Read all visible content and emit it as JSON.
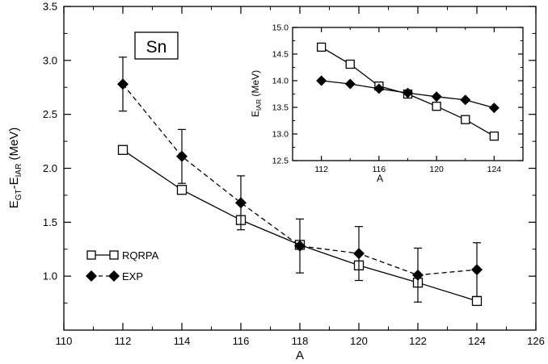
{
  "chart_data": [
    {
      "type": "line",
      "panel": "main",
      "title": "Sn",
      "xlabel": "A",
      "ylabel": {
        "main": "E",
        "sub1": "GT",
        "sep": "-E",
        "sub2": "IAR",
        "unit": " (MeV)"
      },
      "xlim": [
        110,
        126
      ],
      "ylim": [
        0.5,
        3.5
      ],
      "xticks": [
        "110",
        "112",
        "114",
        "116",
        "118",
        "120",
        "122",
        "124",
        "126"
      ],
      "yticks": [
        "1.0",
        "1.5",
        "2.0",
        "2.5",
        "3.0",
        "3.5"
      ],
      "legend_position": "bottom-left",
      "series": [
        {
          "name": "RQRPA",
          "marker": "open-square",
          "line": "solid",
          "x": [
            112,
            114,
            116,
            118,
            120,
            122,
            124
          ],
          "y": [
            2.17,
            1.8,
            1.52,
            1.29,
            1.1,
            0.94,
            0.77
          ]
        },
        {
          "name": "EXP",
          "marker": "filled-diamond",
          "line": "dashed",
          "x": [
            112,
            114,
            116,
            118,
            120,
            122,
            124
          ],
          "y": [
            2.78,
            2.11,
            1.68,
            1.28,
            1.21,
            1.01,
            1.06
          ],
          "err_low": [
            2.53,
            1.86,
            1.43,
            1.03,
            0.96,
            0.76,
            0.81
          ],
          "err_high": [
            3.03,
            2.36,
            1.93,
            1.53,
            1.46,
            1.26,
            1.31
          ]
        }
      ]
    },
    {
      "type": "line",
      "panel": "inset",
      "xlabel": "A",
      "ylabel": {
        "main": "E",
        "sub": "IAR",
        "unit": " (MeV)"
      },
      "xlim": [
        110,
        126
      ],
      "ylim": [
        12.5,
        15.0
      ],
      "xticks": [
        "112",
        "116",
        "120",
        "124"
      ],
      "yticks": [
        "12.5",
        "13.0",
        "13.5",
        "14.0",
        "14.5",
        "15.0"
      ],
      "series": [
        {
          "marker": "open-square",
          "line": "solid",
          "x": [
            112,
            114,
            116,
            118,
            120,
            122,
            124
          ],
          "y": [
            14.63,
            14.31,
            13.9,
            13.75,
            13.52,
            13.27,
            12.96
          ]
        },
        {
          "marker": "filled-diamond",
          "line": "solid",
          "x": [
            112,
            114,
            116,
            118,
            120,
            122,
            124
          ],
          "y": [
            14.0,
            13.94,
            13.85,
            13.77,
            13.7,
            13.64,
            13.49
          ]
        }
      ]
    }
  ]
}
